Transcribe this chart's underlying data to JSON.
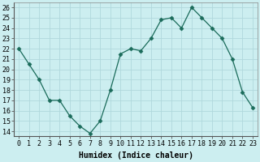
{
  "x": [
    0,
    1,
    2,
    3,
    4,
    5,
    6,
    7,
    8,
    9,
    10,
    11,
    12,
    13,
    14,
    15,
    16,
    17,
    18,
    19,
    20,
    21,
    22,
    23
  ],
  "y": [
    22,
    20.5,
    19,
    17,
    17,
    15.5,
    14.5,
    13.8,
    15,
    18,
    21.5,
    22,
    21.8,
    23,
    24.8,
    25,
    24,
    26,
    25,
    24,
    23,
    21,
    17.8,
    16.3
  ],
  "xlabel": "Humidex (Indice chaleur)",
  "xlim": [
    -0.5,
    23.5
  ],
  "ylim": [
    13.5,
    26.5
  ],
  "yticks": [
    14,
    15,
    16,
    17,
    18,
    19,
    20,
    21,
    22,
    23,
    24,
    25,
    26
  ],
  "xticks": [
    0,
    1,
    2,
    3,
    4,
    5,
    6,
    7,
    8,
    9,
    10,
    11,
    12,
    13,
    14,
    15,
    16,
    17,
    18,
    19,
    20,
    21,
    22,
    23
  ],
  "line_color": "#1a6b5a",
  "marker": "D",
  "marker_size": 2.5,
  "bg_color": "#cceef0",
  "grid_color": "#b0d8dc",
  "title_fontsize": 7,
  "label_fontsize": 7,
  "tick_fontsize": 6
}
